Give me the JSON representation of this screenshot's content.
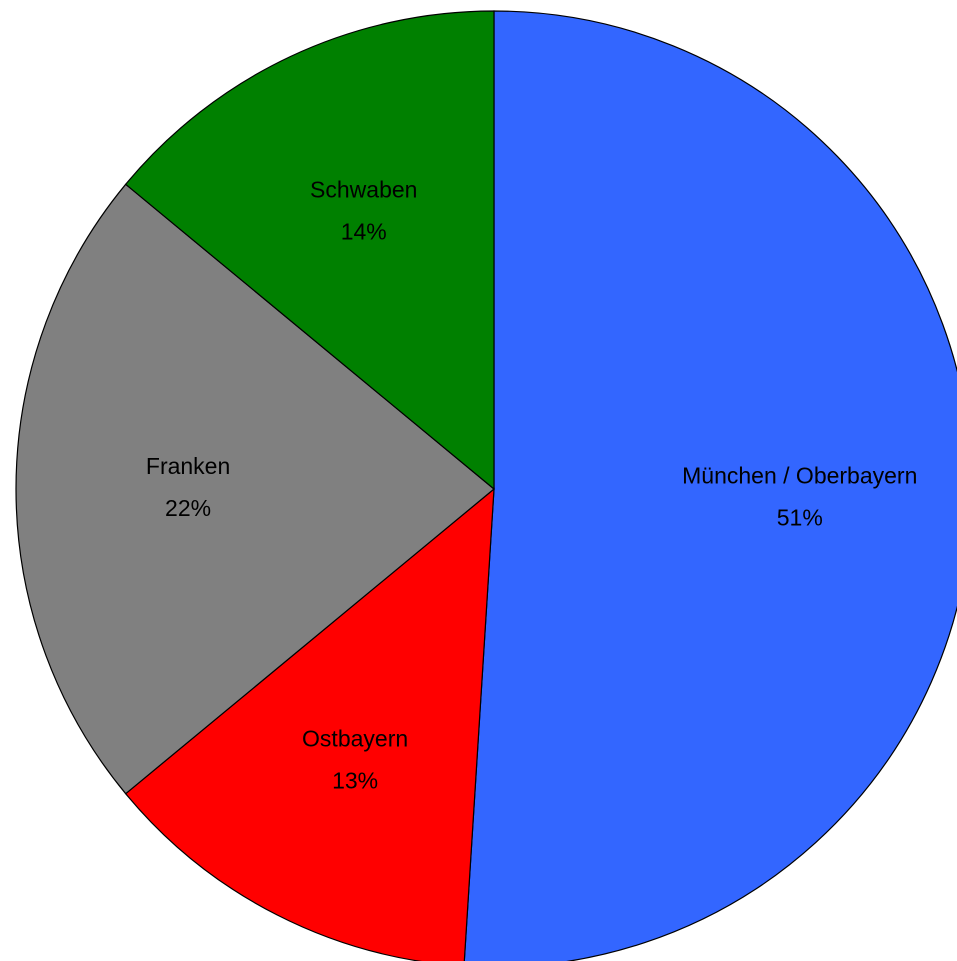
{
  "chart_data": {
    "type": "pie",
    "categories": [
      "München / Oberbayern",
      "Ostbayern",
      "Franken",
      "Schwaben"
    ],
    "values": [
      51,
      13,
      22,
      14
    ],
    "value_labels": [
      "51%",
      "13%",
      "22%",
      "14%"
    ],
    "colors": [
      "#3366ff",
      "#ff0000",
      "#808080",
      "#008000"
    ]
  }
}
